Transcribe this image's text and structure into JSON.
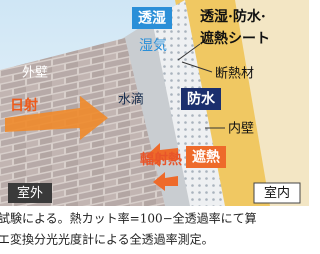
{
  "labels": {
    "moisture_permeable_tag": "透湿",
    "moisture": "湿気",
    "sheet_line1": "透湿·防水·",
    "sheet_line2": "遮熱シート",
    "insulation": "断熱材",
    "outer_wall": "外壁",
    "water_drop": "水滴",
    "waterproof_tag": "防水",
    "sunlight": "日射",
    "inner_wall": "内壁",
    "radiant_heat": "輻射熱",
    "heat_shield_tag": "遮熱",
    "outdoor": "室外",
    "indoor": "室内"
  },
  "caption": {
    "line1": "試験による。熱カット率=100−全透過率にて算",
    "line2": "エ変換分光光度計による全透過率測定。"
  }
}
